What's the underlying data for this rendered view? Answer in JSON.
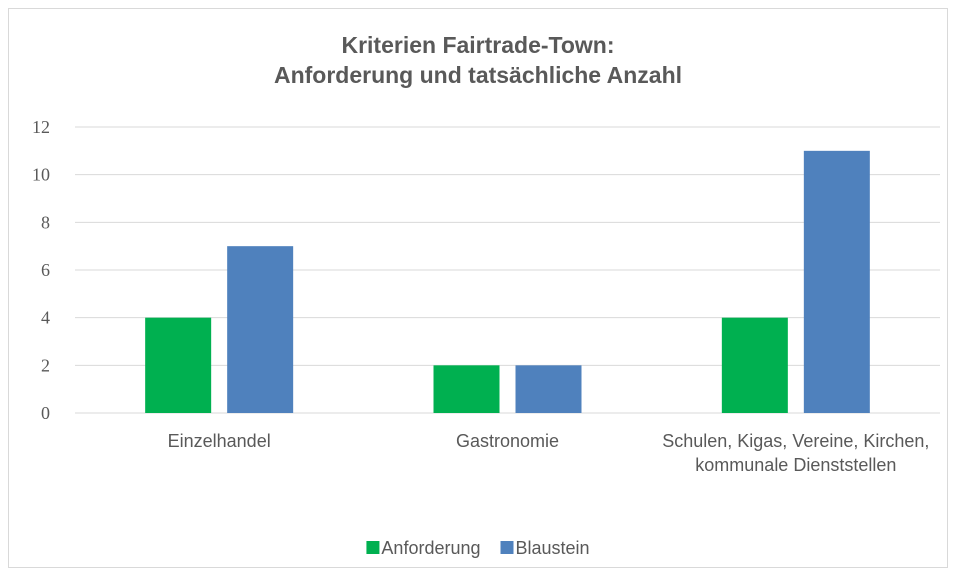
{
  "chart_data": {
    "type": "bar",
    "title": "Kriterien Fairtrade-Town:\nAnforderung und tatsächliche Anzahl",
    "categories": [
      "Einzelhandel",
      "Gastronomie",
      "Schulen, Kigas, Vereine, Kirchen, kommunale Dienststellen"
    ],
    "series": [
      {
        "name": "Anforderung",
        "color": "#00b050",
        "values": [
          4,
          2,
          4
        ]
      },
      {
        "name": "Blaustein",
        "color": "#4f81bd",
        "values": [
          7,
          2,
          11
        ]
      }
    ],
    "ylim": [
      0,
      12
    ],
    "yticks": [
      0,
      2,
      4,
      6,
      8,
      10,
      12
    ],
    "grid": true,
    "legend": "bottom"
  }
}
